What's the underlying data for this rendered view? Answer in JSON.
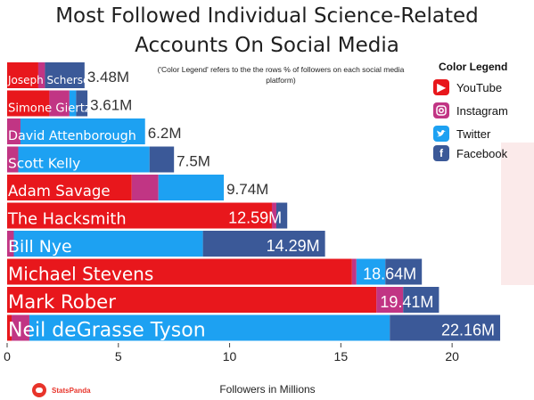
{
  "title_line1": "Most Followed Individual Science-Related",
  "title_line2": "Accounts On Social Media",
  "note": "('Color Legend' refers to the the rows % of followers on each social media platform)",
  "legend": {
    "title": "Color Legend",
    "items": [
      {
        "label": "YouTube",
        "icon": "youtube-icon",
        "color": "#e8171c"
      },
      {
        "label": "Instagram",
        "icon": "instagram-icon",
        "color": "#c13584"
      },
      {
        "label": "Twitter",
        "icon": "twitter-icon",
        "color": "#1da1f2"
      },
      {
        "label": "Facebook",
        "icon": "facebook-icon",
        "color": "#3b5998"
      }
    ]
  },
  "brand": "StatsPanda",
  "chart_data": {
    "type": "bar",
    "orientation": "horizontal",
    "stacked": true,
    "xlabel": "Followers in Millions",
    "xlim": [
      0,
      23
    ],
    "xticks": [
      0,
      5,
      10,
      15,
      20
    ],
    "tick_labels": [
      "0",
      "5",
      "10",
      "15",
      "20"
    ],
    "grid": false,
    "series_colors": {
      "YouTube": "#e8171c",
      "Instagram": "#c13584",
      "Twitter": "#1da1f2",
      "Facebook": "#3b5998"
    },
    "rows": [
      {
        "name": "Joseph Scherscher",
        "label": "3.48M",
        "total": 3.48,
        "segments": [
          [
            "YouTube",
            1.4
          ],
          [
            "Instagram",
            0.3
          ],
          [
            "Facebook",
            1.78
          ]
        ]
      },
      {
        "name": "Simone Giertz",
        "label": "3.61M",
        "total": 3.61,
        "segments": [
          [
            "YouTube",
            1.9
          ],
          [
            "Instagram",
            0.9
          ],
          [
            "Twitter",
            0.3
          ],
          [
            "Facebook",
            0.51
          ]
        ]
      },
      {
        "name": "David Attenborough",
        "label": "6.2M",
        "total": 6.2,
        "segments": [
          [
            "Instagram",
            0.6
          ],
          [
            "Twitter",
            5.6
          ]
        ]
      },
      {
        "name": "Scott Kelly",
        "label": "7.5M",
        "total": 7.5,
        "segments": [
          [
            "Instagram",
            0.5
          ],
          [
            "Twitter",
            5.9
          ],
          [
            "Facebook",
            1.1
          ]
        ]
      },
      {
        "name": "Adam Savage",
        "label": "9.74M",
        "total": 9.74,
        "segments": [
          [
            "YouTube",
            5.6
          ],
          [
            "Instagram",
            1.2
          ],
          [
            "Twitter",
            2.94
          ]
        ]
      },
      {
        "name": "The Hacksmith",
        "label": "12.59M",
        "total": 12.59,
        "segments": [
          [
            "YouTube",
            11.9
          ],
          [
            "Instagram",
            0.2
          ],
          [
            "Facebook",
            0.49
          ]
        ]
      },
      {
        "name": "Bill Nye",
        "label": "14.29M",
        "total": 14.29,
        "segments": [
          [
            "Instagram",
            0.3
          ],
          [
            "Twitter",
            8.5
          ],
          [
            "Facebook",
            5.49
          ]
        ]
      },
      {
        "name": "Michael Stevens",
        "label": "18.64M",
        "total": 18.64,
        "segments": [
          [
            "YouTube",
            15.5
          ],
          [
            "Instagram",
            0.2
          ],
          [
            "Twitter",
            1.3
          ],
          [
            "Facebook",
            1.64
          ]
        ]
      },
      {
        "name": "Mark Rober",
        "label": "19.41M",
        "total": 19.41,
        "segments": [
          [
            "YouTube",
            16.6
          ],
          [
            "Instagram",
            1.2
          ],
          [
            "Facebook",
            1.61
          ]
        ]
      },
      {
        "name": "Neil deGrasse Tyson",
        "label": "22.16M",
        "total": 22.16,
        "segments": [
          [
            "YouTube",
            0.2
          ],
          [
            "Instagram",
            0.8
          ],
          [
            "Twitter",
            16.2
          ],
          [
            "Facebook",
            4.96
          ]
        ]
      }
    ]
  }
}
